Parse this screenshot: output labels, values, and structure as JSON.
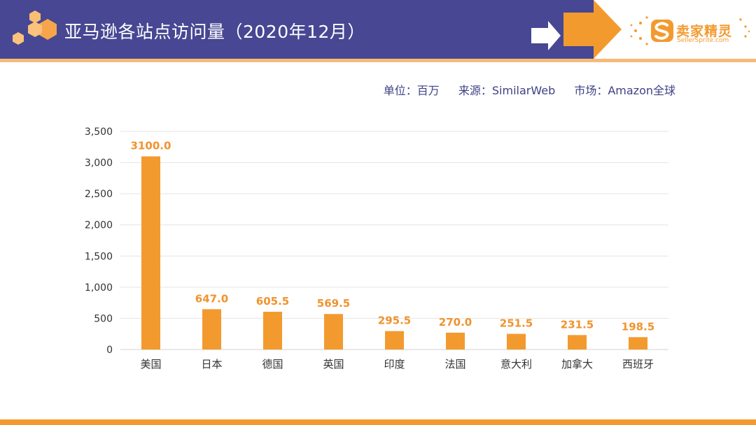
{
  "header": {
    "title": "亚马逊各站点访问量（2020年12月）"
  },
  "logo": {
    "name_cn": "卖家精灵",
    "name_en": "SellerSprite.com"
  },
  "meta": {
    "unit": "单位：百万",
    "source": "来源：SimilarWeb",
    "market": "市场：Amazon全球"
  },
  "colors": {
    "header_bg": "#474793",
    "accent": "#f39a2f",
    "bar": "#f39a2f",
    "bar_label": "#f0932e"
  },
  "chart_data": {
    "type": "bar",
    "title": "",
    "xlabel": "",
    "ylabel": "",
    "categories": [
      "美国",
      "日本",
      "德国",
      "英国",
      "印度",
      "法国",
      "意大利",
      "加拿大",
      "西班牙"
    ],
    "values": [
      3100.0,
      647.0,
      605.5,
      569.5,
      295.5,
      270.0,
      251.5,
      231.5,
      198.5
    ],
    "value_labels": [
      "3100.0",
      "647.0",
      "605.5",
      "569.5",
      "295.5",
      "270.0",
      "251.5",
      "231.5",
      "198.5"
    ],
    "ylim": [
      0,
      3500
    ],
    "yticks": [
      0,
      500,
      1000,
      1500,
      2000,
      2500,
      3000,
      3500
    ],
    "ytick_labels": [
      "0",
      "500",
      "1,000",
      "1,500",
      "2,000",
      "2,500",
      "3,000",
      "3,500"
    ],
    "grid": true,
    "legend": "none"
  }
}
